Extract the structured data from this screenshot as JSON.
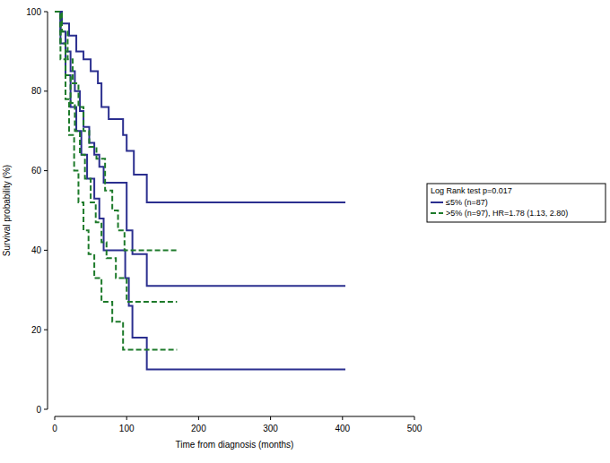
{
  "chart_data": {
    "type": "step",
    "x_label": "Time from diagnosis (months)",
    "y_label": "Survival probability (%)",
    "xlim": [
      0,
      500
    ],
    "ylim": [
      0,
      100
    ],
    "xticks": [
      0,
      100,
      200,
      300,
      400,
      500
    ],
    "yticks": [
      0,
      20,
      40,
      60,
      80,
      100
    ],
    "grid": false,
    "legend": "right",
    "legend_title": "Log Rank test p=0.017",
    "series": [
      {
        "name": "≤5% (n=87)",
        "color": "#2b2f8f",
        "line_style": "solid",
        "x": [
          0,
          8,
          15,
          22,
          28,
          35,
          40,
          48,
          55,
          62,
          68,
          95,
          100,
          108,
          128,
          404
        ],
        "values": [
          100,
          95,
          90,
          85,
          80,
          75,
          71,
          67,
          64,
          61,
          57,
          57,
          45,
          39,
          31,
          31
        ],
        "ci_lower": {
          "x": [
            0,
            8,
            15,
            22,
            30,
            37,
            45,
            55,
            62,
            68,
            93,
            98,
            103,
            108,
            128,
            404
          ],
          "values": [
            100,
            92,
            84,
            76,
            70,
            64,
            58,
            53,
            48,
            40,
            40,
            33,
            26,
            18,
            10,
            10
          ]
        },
        "ci_upper": {
          "x": [
            0,
            10,
            20,
            30,
            40,
            50,
            60,
            65,
            75,
            95,
            100,
            110,
            128,
            404
          ],
          "values": [
            100,
            97,
            94,
            90,
            88,
            85,
            82,
            76,
            73,
            69,
            65,
            59,
            52,
            52
          ]
        }
      },
      {
        "name": ">5% (n=97), HR=1.78 (1.13, 2.80)",
        "color": "#1d7a2a",
        "line_style": "dashed",
        "x": [
          0,
          8,
          15,
          22,
          28,
          35,
          42,
          50,
          57,
          65,
          72,
          85,
          100,
          170
        ],
        "values": [
          100,
          92,
          84,
          77,
          70,
          64,
          58,
          52,
          47,
          42,
          38,
          33,
          27,
          27
        ],
        "ci_lower": {
          "x": [
            0,
            8,
            15,
            20,
            27,
            33,
            40,
            47,
            55,
            65,
            80,
            95,
            170
          ],
          "values": [
            100,
            88,
            78,
            69,
            60,
            52,
            45,
            39,
            33,
            27,
            22,
            15,
            15
          ]
        },
        "ci_upper": {
          "x": [
            0,
            10,
            18,
            25,
            33,
            40,
            48,
            58,
            70,
            80,
            88,
            97,
            170
          ],
          "values": [
            100,
            95,
            88,
            82,
            76,
            70,
            66,
            63,
            55,
            50,
            45,
            40,
            40
          ]
        }
      }
    ]
  }
}
